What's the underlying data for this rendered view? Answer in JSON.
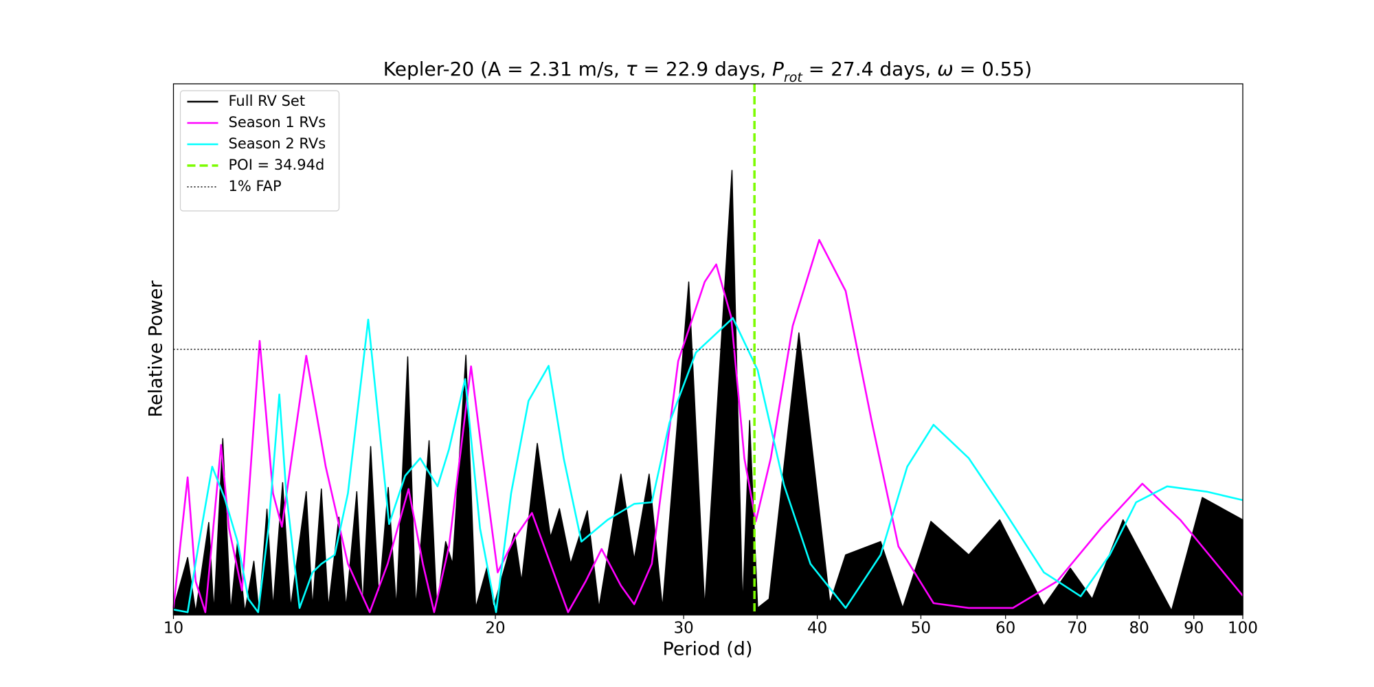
{
  "chart_data": {
    "type": "line",
    "title": [
      "Kepler-20 (A = 2.31 m/s, ",
      "τ",
      " = 22.9 days, ",
      "P",
      "rot",
      " = 27.4 days, ",
      "ω",
      " = 0.55)"
    ],
    "xlabel": "Period (d)",
    "ylabel": "Relative Power",
    "xscale": "log",
    "xlim": [
      10,
      100
    ],
    "ylim": [
      0,
      1
    ],
    "xticks": [
      10,
      20,
      30,
      40,
      50,
      60,
      70,
      80,
      90,
      100
    ],
    "legend": "upper left",
    "series": [
      {
        "name": "Full RV Set",
        "color": "#000000",
        "fill": true,
        "x": [
          10,
          10.31,
          10.49,
          10.79,
          10.91,
          11.12,
          11.31,
          11.48,
          11.66,
          11.89,
          12.02,
          12.23,
          12.39,
          12.65,
          12.87,
          13.31,
          13.49,
          13.75,
          13.96,
          14.28,
          14.5,
          14.84,
          15.03,
          15.29,
          15.56,
          15.88,
          16.16,
          16.56,
          16.85,
          17.34,
          17.63,
          17.97,
          18.24,
          18.77,
          19.17,
          19.65,
          19.91,
          20.84,
          21.16,
          21.89,
          22.52,
          22.96,
          23.52,
          24.38,
          25.0,
          26.21,
          26.97,
          27.85,
          28.66,
          30.33,
          31.39,
          33.29,
          34.06,
          34.58,
          35.18,
          36.06,
          38.45,
          41.1,
          42.52,
          45.85,
          48.08,
          51.09,
          55.43,
          59.25,
          65.16,
          68.98,
          72.31,
          77.27,
          85.78,
          91.65,
          100
        ],
        "values": [
          0.013,
          0.108,
          0.005,
          0.174,
          0.005,
          0.332,
          0.005,
          0.138,
          0.005,
          0.101,
          0.005,
          0.199,
          0.013,
          0.249,
          0.013,
          0.232,
          0.013,
          0.237,
          0.013,
          0.184,
          0.013,
          0.232,
          0.013,
          0.317,
          0.03,
          0.24,
          0.013,
          0.486,
          0.013,
          0.328,
          0.013,
          0.138,
          0.096,
          0.489,
          0.013,
          0.091,
          0.013,
          0.154,
          0.063,
          0.323,
          0.146,
          0.2,
          0.096,
          0.196,
          0.013,
          0.265,
          0.104,
          0.265,
          0.013,
          0.627,
          0.013,
          0.837,
          0.013,
          0.366,
          0.013,
          0.03,
          0.531,
          0.022,
          0.113,
          0.138,
          0.013,
          0.176,
          0.113,
          0.179,
          0.017,
          0.088,
          0.03,
          0.179,
          0.008,
          0.221,
          0.179
        ]
      },
      {
        "name": "Season 1 RVs",
        "color": "#ff00ff",
        "x": [
          10,
          10.31,
          10.49,
          10.71,
          11.08,
          11.27,
          11.59,
          12.04,
          12.39,
          12.63,
          13.31,
          13.88,
          14.56,
          15.26,
          15.86,
          16.59,
          17.11,
          17.53,
          18.1,
          18.98,
          19.46,
          20.1,
          20.87,
          21.64,
          22.52,
          23.39,
          24.29,
          25.14,
          26.21,
          26.97,
          28.01,
          29.65,
          31.39,
          32.18,
          33.23,
          34.19,
          35.04,
          36.19,
          37.94,
          40.17,
          42.52,
          45.0,
          47.64,
          51.38,
          55.43,
          60.95,
          67.03,
          73.7,
          80.55,
          87.4,
          100
        ],
        "values": [
          0.013,
          0.259,
          0.063,
          0.005,
          0.32,
          0.163,
          0.046,
          0.516,
          0.229,
          0.166,
          0.488,
          0.279,
          0.096,
          0.005,
          0.096,
          0.237,
          0.096,
          0.005,
          0.129,
          0.468,
          0.295,
          0.08,
          0.146,
          0.192,
          0.096,
          0.005,
          0.063,
          0.124,
          0.055,
          0.02,
          0.096,
          0.478,
          0.627,
          0.66,
          0.561,
          0.295,
          0.176,
          0.295,
          0.544,
          0.706,
          0.61,
          0.362,
          0.129,
          0.022,
          0.013,
          0.013,
          0.063,
          0.163,
          0.247,
          0.179,
          0.036
        ]
      },
      {
        "name": "Season 2 RVs",
        "color": "#00ffff",
        "x": [
          10,
          10.31,
          10.55,
          10.87,
          11.16,
          11.48,
          11.75,
          12.0,
          12.27,
          12.56,
          12.75,
          13.12,
          13.49,
          13.75,
          14.15,
          14.56,
          15.21,
          15.56,
          15.91,
          16.47,
          17.01,
          17.66,
          18.1,
          18.74,
          19.35,
          20.03,
          20.69,
          21.48,
          22.43,
          23.17,
          24.07,
          25.47,
          26.97,
          28.01,
          29.1,
          30.8,
          33.35,
          35.18,
          37.23,
          39.42,
          42.52,
          45.85,
          48.55,
          51.38,
          55.43,
          59.82,
          65.16,
          70.53,
          75.09,
          79.48,
          84.98,
          92.52,
          100
        ],
        "values": [
          0.01,
          0.005,
          0.129,
          0.279,
          0.221,
          0.138,
          0.03,
          0.005,
          0.163,
          0.415,
          0.229,
          0.013,
          0.08,
          0.096,
          0.113,
          0.229,
          0.556,
          0.362,
          0.171,
          0.262,
          0.295,
          0.242,
          0.312,
          0.444,
          0.163,
          0.005,
          0.229,
          0.403,
          0.469,
          0.295,
          0.138,
          0.179,
          0.209,
          0.212,
          0.362,
          0.494,
          0.559,
          0.461,
          0.245,
          0.096,
          0.013,
          0.113,
          0.279,
          0.358,
          0.295,
          0.196,
          0.08,
          0.035,
          0.113,
          0.212,
          0.242,
          0.232,
          0.216
        ]
      }
    ],
    "poi": {
      "label": "POI = 34.94d",
      "x": 34.94,
      "color": "#7cfc00",
      "style": "dashed"
    },
    "fap": {
      "label": "1% FAP",
      "y": 0.5,
      "color": "#000000",
      "style": "dotted"
    }
  }
}
